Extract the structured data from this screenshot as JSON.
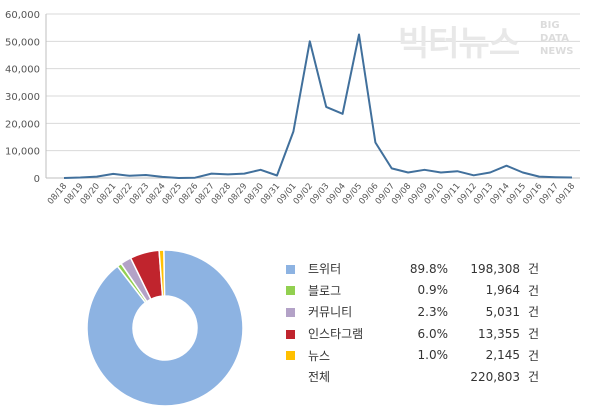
{
  "watermark": {
    "main": "빅터뉴스",
    "sub": [
      "BIG",
      "DATA",
      "NEWS"
    ]
  },
  "chart_data": [
    {
      "type": "line",
      "x": [
        "08/18",
        "08/19",
        "08/20",
        "08/21",
        "08/22",
        "08/23",
        "08/24",
        "08/25",
        "08/26",
        "08/27",
        "08/28",
        "08/29",
        "08/30",
        "08/31",
        "09/01",
        "09/02",
        "09/03",
        "09/04",
        "09/05",
        "09/06",
        "09/07",
        "09/08",
        "09/09",
        "09/10",
        "09/11",
        "09/12",
        "09/13",
        "09/14",
        "09/15",
        "09/16",
        "09/17",
        "09/18"
      ],
      "values": [
        0,
        200,
        500,
        1500,
        800,
        1100,
        400,
        0,
        100,
        1600,
        1300,
        1600,
        3000,
        900,
        17000,
        50000,
        26000,
        23500,
        52500,
        13000,
        3500,
        2000,
        3000,
        2000,
        2500,
        1000,
        2000,
        4500,
        2000,
        500,
        300,
        200
      ],
      "ylim": [
        0,
        60000
      ],
      "yticks": [
        "0",
        "10,000",
        "20,000",
        "30,000",
        "40,000",
        "50,000",
        "60,000"
      ],
      "grid": true,
      "color": "#41709c"
    },
    {
      "type": "pie",
      "donut": true,
      "slices": [
        {
          "name": "트위터",
          "pct": "89.8%",
          "count": "198,308",
          "unit": "건",
          "value": 198308,
          "color": "#8db3e2"
        },
        {
          "name": "블로그",
          "pct": "0.9%",
          "count": "1,964",
          "unit": "건",
          "value": 1964,
          "color": "#92d050"
        },
        {
          "name": "커뮤니티",
          "pct": "2.3%",
          "count": "5,031",
          "unit": "건",
          "value": 5031,
          "color": "#b3a2c7"
        },
        {
          "name": "인스타그램",
          "pct": "6.0%",
          "count": "13,355",
          "unit": "건",
          "value": 13355,
          "color": "#c0242d"
        },
        {
          "name": "뉴스",
          "pct": "1.0%",
          "count": "2,145",
          "unit": "건",
          "value": 2145,
          "color": "#ffc000"
        }
      ],
      "total": {
        "name": "전체",
        "count": "220,803",
        "unit": "건"
      }
    }
  ]
}
